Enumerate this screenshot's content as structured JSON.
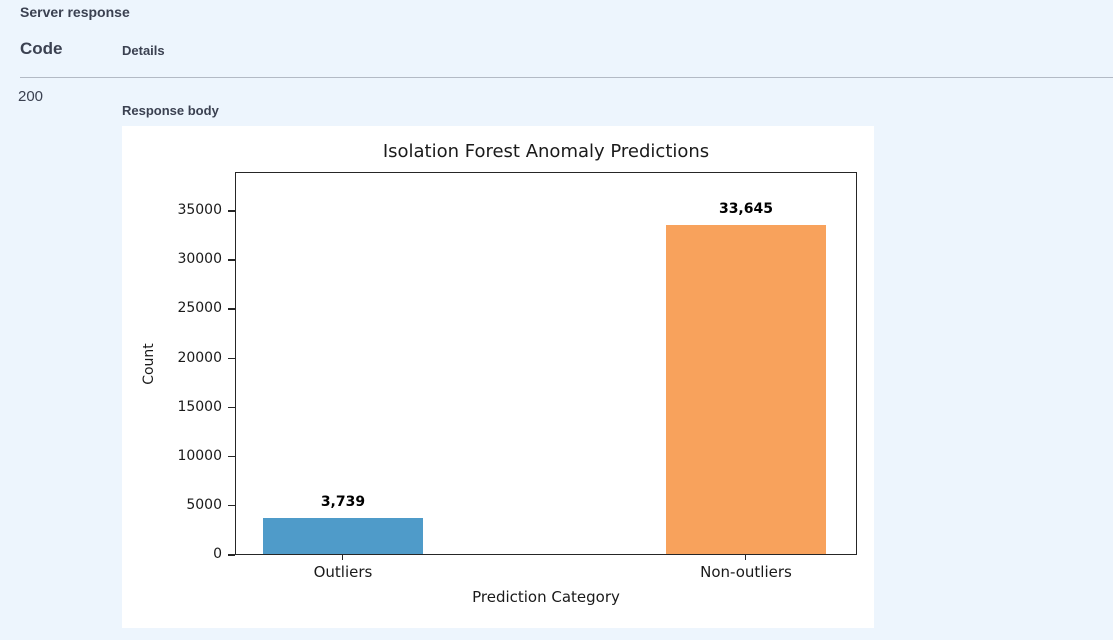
{
  "page": {
    "background_color": "#edf5fd",
    "text_color": "#3b4151",
    "panel_color": "#ffffff"
  },
  "server_response": {
    "title": "Server response",
    "columns": {
      "code": "Code",
      "details": "Details"
    },
    "row": {
      "code": "200",
      "response_body_label": "Response body"
    }
  },
  "chart_data": {
    "type": "bar",
    "title": "Isolation Forest Anomaly Predictions",
    "xlabel": "Prediction Category",
    "ylabel": "Count",
    "categories": [
      "Outliers",
      "Non-outliers"
    ],
    "values": [
      3739,
      33645
    ],
    "bar_labels": [
      "3,739",
      "33,645"
    ],
    "bar_colors": [
      "#4f9bc9",
      "#f8a25c"
    ],
    "yticks": [
      0,
      5000,
      10000,
      15000,
      20000,
      25000,
      30000,
      35000
    ],
    "ylim": [
      0,
      39000
    ],
    "grid": false,
    "legend_position": "none",
    "axis_color": "#262626"
  }
}
